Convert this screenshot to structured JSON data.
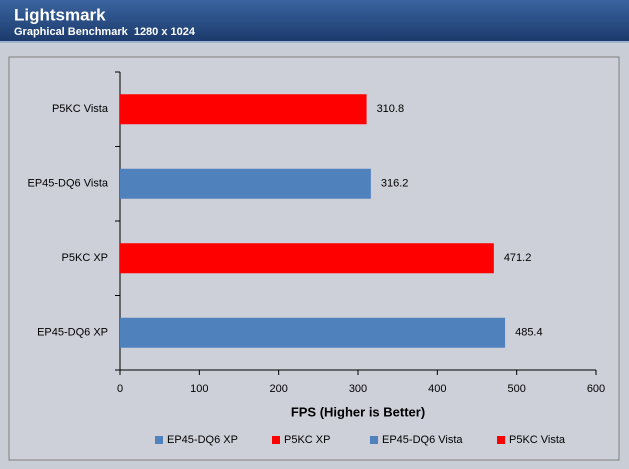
{
  "header": {
    "title": "Lightsmark",
    "subtitle": "Graphical Benchmark  1280 x 1024"
  },
  "chart_data": {
    "type": "hbar",
    "categories": [
      "P5KC Vista",
      "EP45-DQ6 Vista",
      "P5KC XP",
      "EP45-DQ6 XP"
    ],
    "values": [
      310.8,
      316.2,
      471.2,
      485.4
    ],
    "colors": [
      "#ff0000",
      "#4f81bd",
      "#ff0000",
      "#4f81bd"
    ],
    "xlabel": "FPS (Higher is Better)",
    "xlim": [
      0,
      600
    ],
    "xticks": [
      0,
      100,
      200,
      300,
      400,
      500,
      600
    ],
    "legend": "bottom",
    "grid": false
  }
}
